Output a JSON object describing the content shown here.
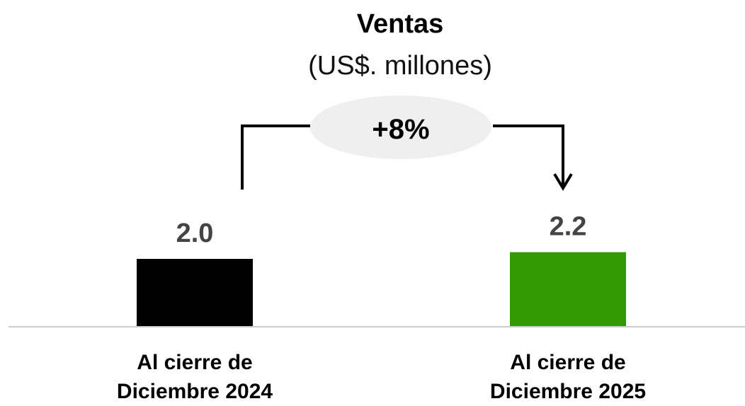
{
  "chart_data": {
    "type": "bar",
    "title": "Ventas",
    "subtitle": "(US$. millones)",
    "annotation": "+8%",
    "categories": [
      "Al cierre de Diciembre 2024",
      "Al cierre de Diciembre 2025"
    ],
    "values": [
      2.0,
      2.2
    ],
    "value_labels": [
      "2.0",
      "2.2"
    ],
    "colors": [
      "#000000",
      "#339900"
    ]
  }
}
